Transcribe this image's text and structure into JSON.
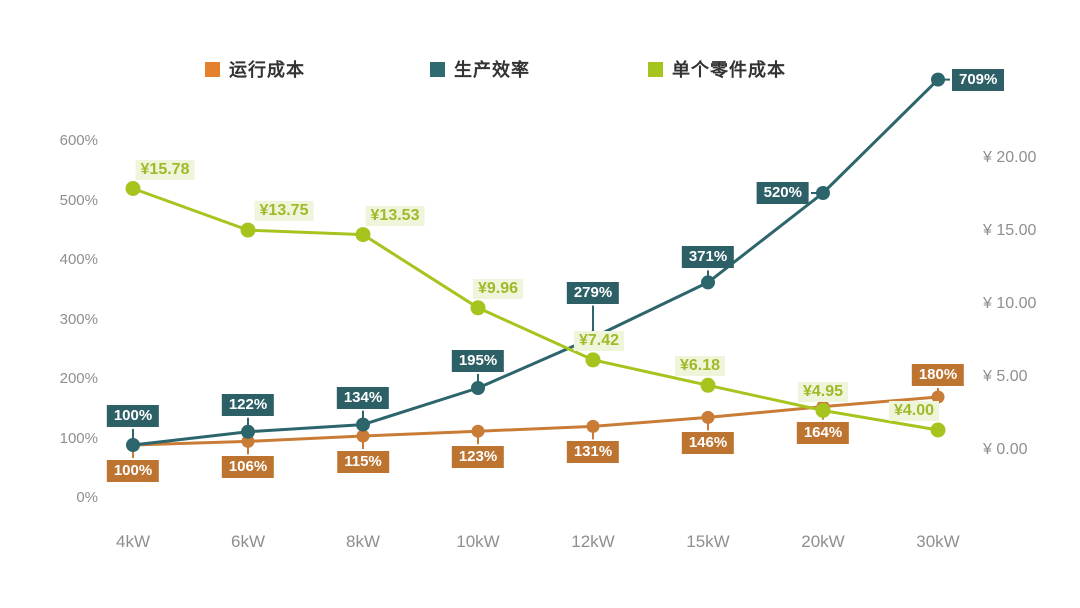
{
  "chart_data": {
    "type": "line",
    "title": "",
    "categories": [
      "4kW",
      "6kW",
      "8kW",
      "10kW",
      "12kW",
      "15kW",
      "20kW",
      "30kW"
    ],
    "grid": false,
    "legend_position": "top",
    "left_axis": {
      "ticks": [
        "0%",
        "100%",
        "200%",
        "300%",
        "400%",
        "500%",
        "600%"
      ],
      "range": [
        0,
        600
      ],
      "unit": "%"
    },
    "right_axis": {
      "ticks": [
        "¥ 0.00",
        "¥ 5.00",
        "¥ 10.00",
        "¥ 15.00",
        "¥ 20.00"
      ],
      "range": [
        0,
        20
      ],
      "unit": "¥"
    },
    "axis_text_color": "#8f8f8f",
    "series": [
      {
        "key": "operating-cost",
        "name": "运行成本",
        "axis": "left",
        "color": "#c97c36",
        "legend_color": "#e5812e",
        "label_bg": "#bd7430",
        "label_text_color": "#ffffff",
        "values": [
          100,
          106,
          115,
          123,
          131,
          146,
          164,
          180
        ],
        "labels": [
          "100%",
          "106%",
          "115%",
          "123%",
          "131%",
          "146%",
          "164%",
          "180%"
        ],
        "label_sides": [
          "below",
          "below",
          "below",
          "below",
          "below",
          "below",
          "below",
          "above"
        ]
      },
      {
        "key": "production-efficiency",
        "name": "生产效率",
        "axis": "left",
        "color": "#2d656c",
        "legend_color": "#2e6a70",
        "label_bg": "#2c5f66",
        "label_text_color": "#ffffff",
        "values": [
          100,
          122,
          134,
          195,
          279,
          371,
          520,
          709
        ],
        "labels": [
          "100%",
          "122%",
          "134%",
          "195%",
          "279%",
          "371%",
          "520%",
          "709%"
        ],
        "label_sides": [
          "above",
          "above",
          "above",
          "above",
          "above",
          "above",
          "left",
          "right"
        ]
      },
      {
        "key": "unit-part-cost",
        "name": "单个零件成本",
        "axis": "right",
        "color": "#a6c41e",
        "legend_color": "#a6c41e",
        "label_bg": "#eef5db",
        "label_text_color": "#9fba28",
        "values": [
          15.78,
          13.75,
          13.53,
          9.96,
          7.42,
          6.18,
          4.95,
          4.0
        ],
        "labels": [
          "¥15.78",
          "¥13.75",
          "¥13.53",
          "¥9.96",
          "¥7.42",
          "¥6.18",
          "¥4.95",
          "¥4.00"
        ],
        "label_sides": [
          "above",
          "above",
          "above",
          "above",
          "above",
          "above",
          "above",
          "above"
        ]
      }
    ]
  }
}
